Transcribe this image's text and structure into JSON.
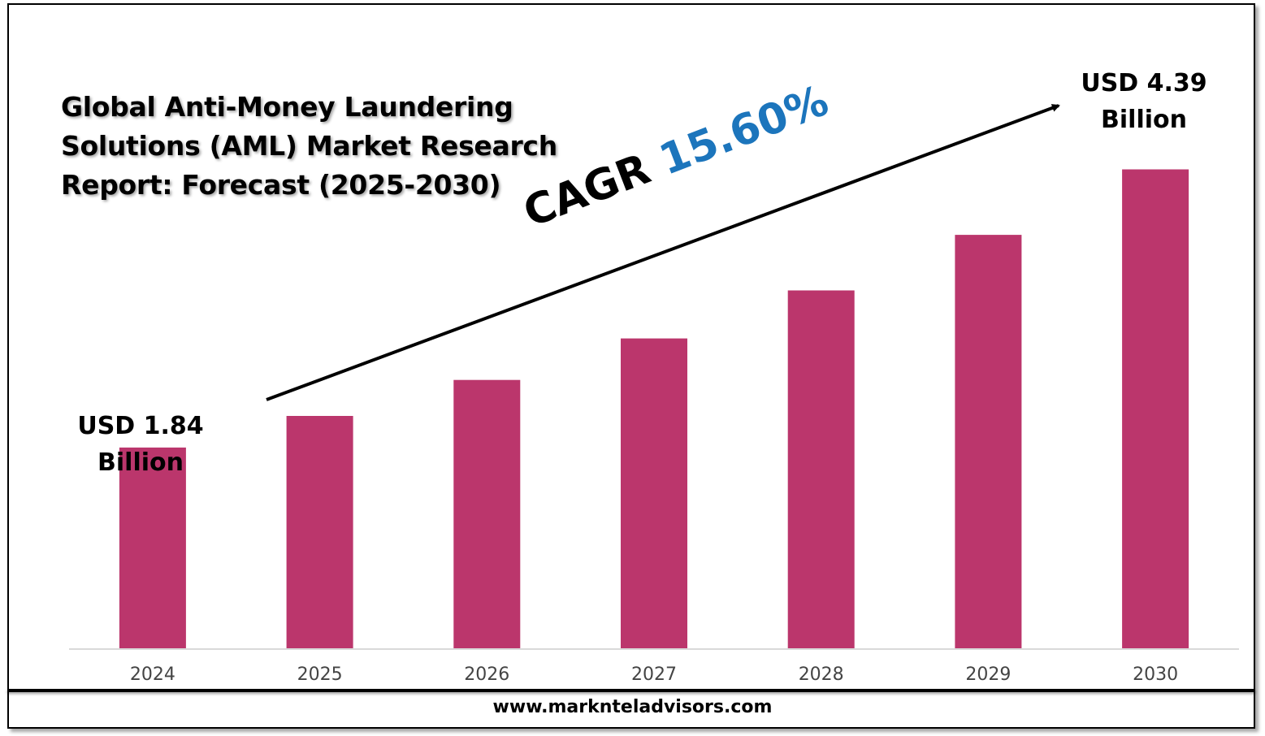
{
  "title_lines": [
    "Global Anti-Money Laundering",
    "Solutions (AML) Market Research",
    "Report: Forecast (2025-2030)"
  ],
  "start_label": {
    "line1": "USD 1.84",
    "line2": "Billion"
  },
  "end_label": {
    "line1": "USD 4.39",
    "line2": "Billion"
  },
  "cagr": {
    "prefix": "CAGR",
    "value": "15.60%"
  },
  "footer": "www.marknteladvisors.com",
  "colors": {
    "bar": "#bb366c",
    "cagr_value": "#1c75bc",
    "axis": "#d9d9d9"
  },
  "chart_data": {
    "type": "bar",
    "categories": [
      "2024",
      "2025",
      "2026",
      "2027",
      "2028",
      "2029",
      "2030"
    ],
    "values": [
      1.84,
      2.13,
      2.46,
      2.84,
      3.28,
      3.79,
      4.39
    ],
    "ylim": [
      0,
      4.9
    ],
    "grid": false,
    "annotations": [
      "USD 1.84 Billion",
      "USD 4.39 Billion",
      "CAGR 15.60%"
    ]
  }
}
